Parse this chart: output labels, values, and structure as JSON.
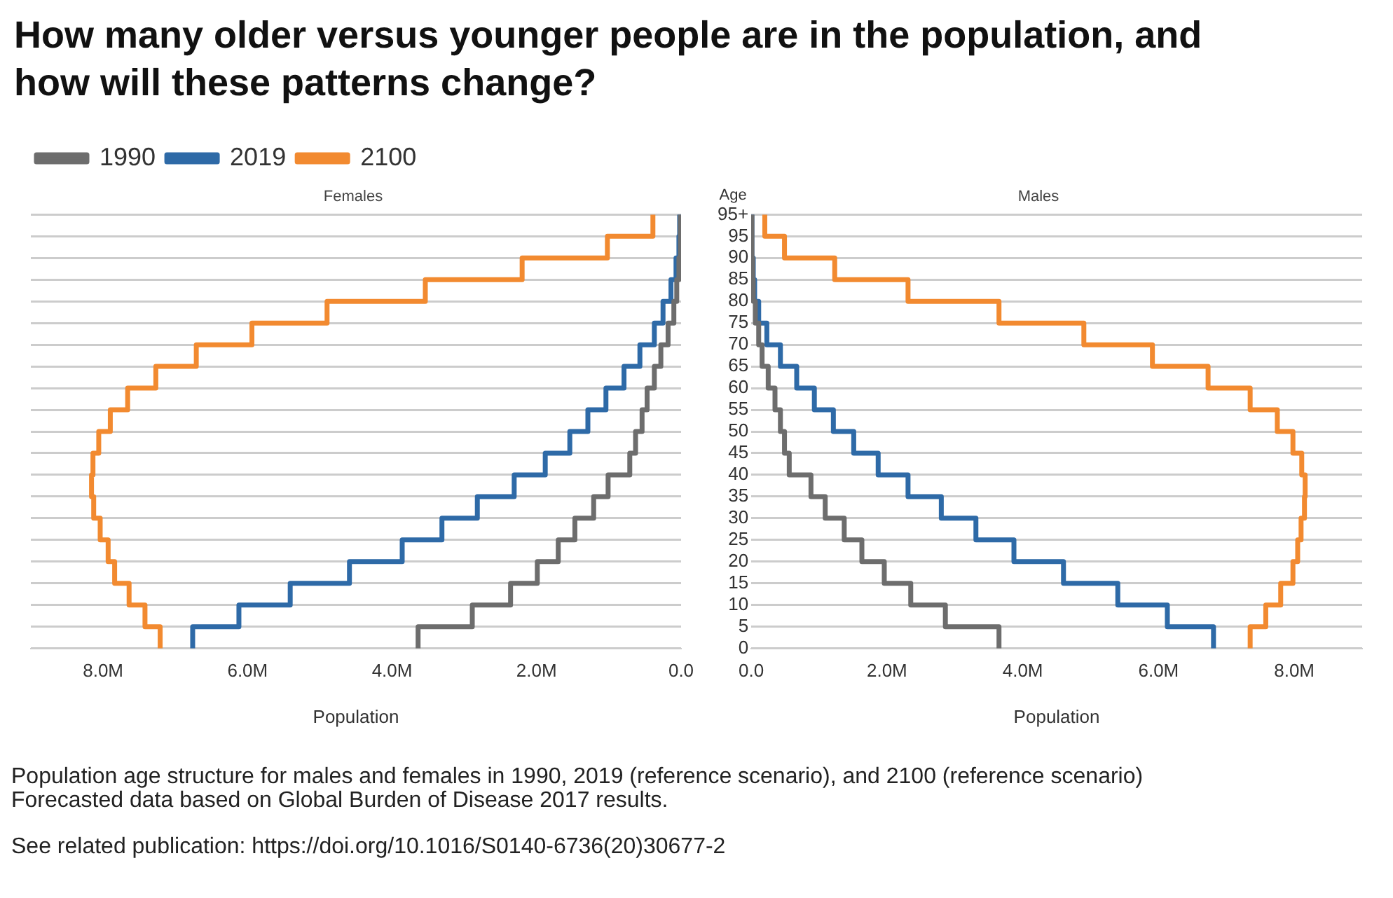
{
  "chart_data": [
    {
      "type": "step",
      "title": "How many older versus younger people are in the population, and how will these patterns change?",
      "subtitle": "Females",
      "orientation": "horizontal",
      "legend": "top left",
      "grid": "y",
      "xlabel": "Population",
      "categories": [
        null,
        null,
        null,
        null,
        null,
        null,
        null,
        null,
        null,
        null,
        null,
        null,
        null,
        null,
        null,
        null,
        null,
        null,
        null,
        null,
        null
      ],
      "xlim": [
        9,
        0
      ],
      "xticks": [
        {
          "value": 8,
          "label": "8.0M"
        },
        {
          "value": 6,
          "label": "6.0M"
        },
        {
          "value": 4,
          "label": "4.0M"
        },
        {
          "value": 2,
          "label": "2.0M"
        },
        {
          "value": 0,
          "label": "0.0"
        }
      ],
      "series": [
        {
          "name": "1990",
          "color": "#6d6d6d",
          "values": [
            0.01,
            0.01,
            0.01,
            0.03,
            0.06,
            0.1,
            0.18,
            0.28,
            0.37,
            0.47,
            0.54,
            0.63,
            0.71,
            1.01,
            1.21,
            1.47,
            1.7,
            1.99,
            2.36,
            2.89,
            3.64
          ]
        },
        {
          "name": "2019",
          "color": "#2e6aa7",
          "values": [
            0.02,
            0.02,
            0.03,
            0.07,
            0.14,
            0.25,
            0.37,
            0.57,
            0.79,
            1.04,
            1.29,
            1.54,
            1.88,
            2.31,
            2.82,
            3.31,
            3.86,
            4.59,
            5.41,
            6.12,
            6.76
          ]
        },
        {
          "name": "2100",
          "color": "#f28a30",
          "values": [
            0.39,
            0.39,
            1.02,
            2.2,
            3.54,
            4.9,
            5.94,
            6.71,
            7.27,
            7.66,
            7.9,
            8.06,
            8.14,
            8.16,
            8.13,
            8.04,
            7.93,
            7.84,
            7.64,
            7.42,
            7.21
          ]
        }
      ]
    },
    {
      "type": "step",
      "subtitle": "Males",
      "orientation": "horizontal",
      "grid": "y",
      "xlabel": "Population",
      "ylabel": "Age",
      "categories": [
        "95+",
        "95",
        "90",
        "85",
        "80",
        "75",
        "70",
        "65",
        "60",
        "55",
        "50",
        "45",
        "40",
        "35",
        "30",
        "25",
        "20",
        "15",
        "10",
        "5",
        "0"
      ],
      "xlim": [
        0,
        9
      ],
      "xticks": [
        {
          "value": 0,
          "label": "0.0"
        },
        {
          "value": 2,
          "label": "2.0M"
        },
        {
          "value": 4,
          "label": "4.0M"
        },
        {
          "value": 6,
          "label": "6.0M"
        },
        {
          "value": 8,
          "label": "8.0M"
        }
      ],
      "series": [
        {
          "name": "1990",
          "color": "#6d6d6d",
          "values": [
            0.01,
            0.01,
            0.01,
            0.02,
            0.03,
            0.06,
            0.11,
            0.16,
            0.25,
            0.35,
            0.43,
            0.49,
            0.56,
            0.88,
            1.09,
            1.37,
            1.63,
            1.96,
            2.35,
            2.86,
            3.65
          ]
        },
        {
          "name": "2019",
          "color": "#2e6aa7",
          "values": [
            0.01,
            0.01,
            0.01,
            0.03,
            0.05,
            0.11,
            0.23,
            0.43,
            0.67,
            0.93,
            1.21,
            1.51,
            1.87,
            2.31,
            2.8,
            3.31,
            3.87,
            4.6,
            5.4,
            6.13,
            6.81
          ]
        },
        {
          "name": "2100",
          "color": "#f28a30",
          "values": [
            0.2,
            0.2,
            0.49,
            1.23,
            2.31,
            3.65,
            4.9,
            5.91,
            6.73,
            7.35,
            7.75,
            7.98,
            8.11,
            8.16,
            8.15,
            8.1,
            8.05,
            7.98,
            7.8,
            7.58,
            7.35
          ]
        }
      ],
      "annotations": [
        "Population age structure for males and females in 1990, 2019 (reference scenario), and 2100 (reference scenario)",
        "Forecasted data based on Global Burden of Disease 2017 results.",
        "See related publication: https://doi.org/10.1016/S0140-6736(20)30677-2"
      ]
    }
  ]
}
